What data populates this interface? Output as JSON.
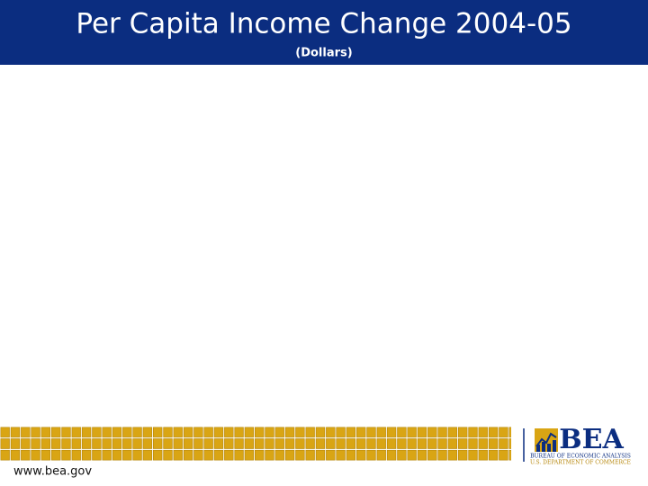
{
  "header": {
    "title": "Per Capita Income Change 2004-05",
    "subtitle": "(Dollars)"
  },
  "footer": {
    "url": "www.bea.gov"
  },
  "logo": {
    "name": "BEA",
    "line1": "BUREAU OF ECONOMIC ANALYSIS",
    "line2": "U.S. DEPARTMENT OF COMMERCE"
  }
}
